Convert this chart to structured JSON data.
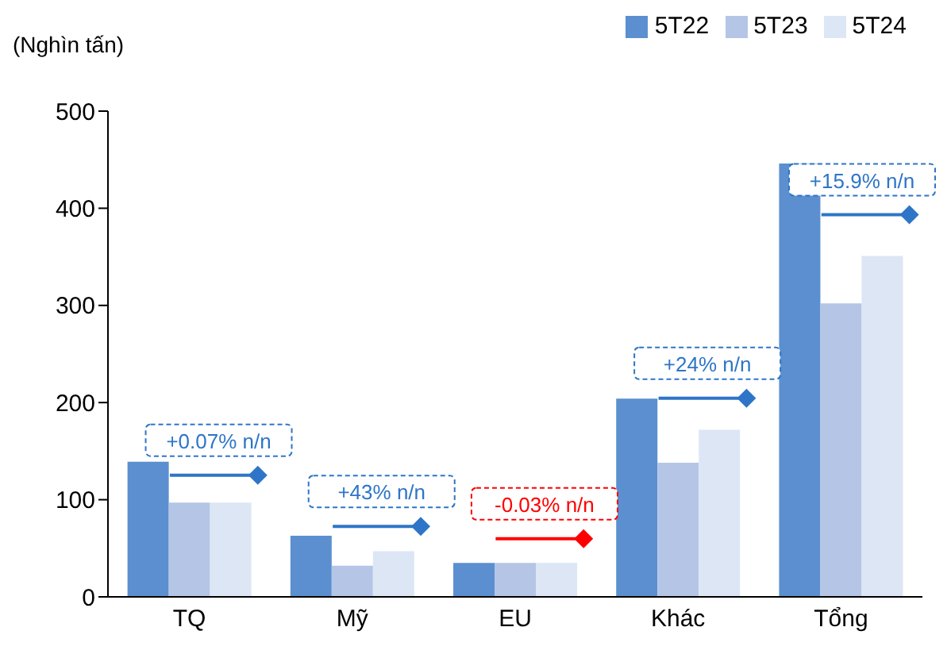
{
  "chart_data": {
    "type": "bar",
    "ylabel": "(Nghìn tấn)",
    "categories": [
      "TQ",
      "Mỹ",
      "EU",
      "Khác",
      "Tổng"
    ],
    "series": [
      {
        "name": "5T22",
        "color": "#5b8fd0",
        "values": [
          139,
          63,
          35,
          204,
          446
        ]
      },
      {
        "name": "5T23",
        "color": "#b4c5e6",
        "values": [
          97,
          32,
          35,
          138,
          302
        ]
      },
      {
        "name": "5T24",
        "color": "#dce6f5",
        "values": [
          97,
          47,
          35,
          172,
          351
        ]
      }
    ],
    "ylim": [
      0,
      500
    ],
    "yticks": [
      0,
      100,
      200,
      300,
      400,
      500
    ],
    "grid": false,
    "legend": "top right",
    "annotations": [
      "+0.07% n/n",
      "+43% n/n",
      "-0.03% n/n",
      "+24% n/n",
      "+15.9% n/n"
    ]
  }
}
